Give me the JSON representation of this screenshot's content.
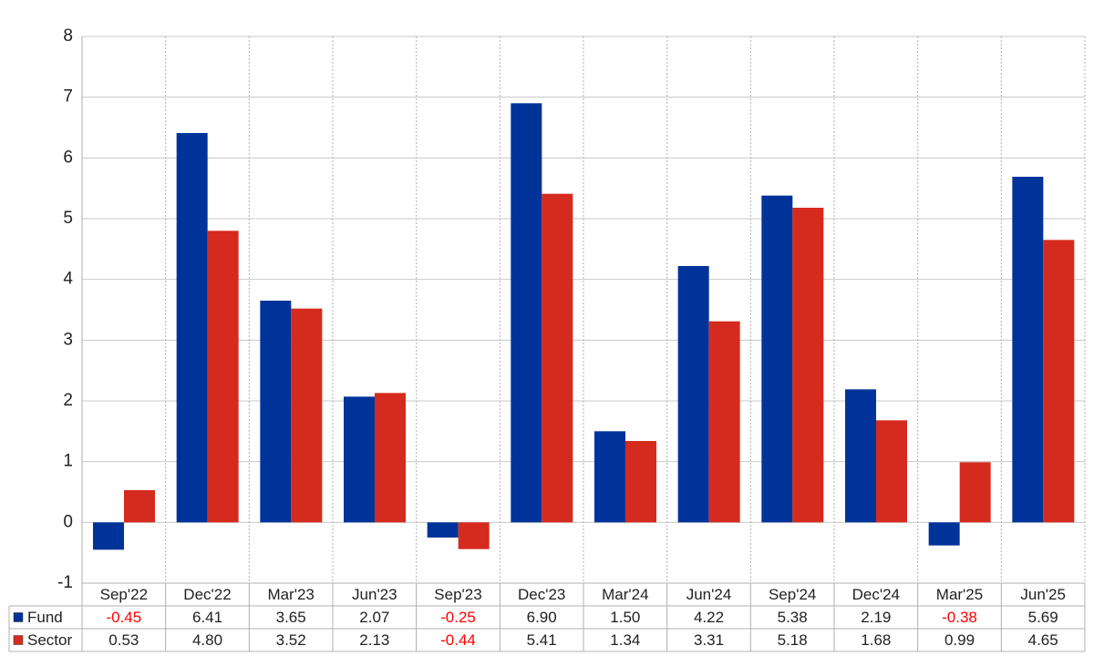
{
  "chart_data": {
    "type": "bar",
    "categories": [
      "Sep'22",
      "Dec'22",
      "Mar'23",
      "Jun'23",
      "Sep'23",
      "Dec'23",
      "Mar'24",
      "Jun'24",
      "Sep'24",
      "Dec'24",
      "Mar'25",
      "Jun'25"
    ],
    "series": [
      {
        "name": "Fund",
        "color": "#003399",
        "values": [
          -0.45,
          6.41,
          3.65,
          2.07,
          -0.25,
          6.9,
          1.5,
          4.22,
          5.38,
          2.19,
          -0.38,
          5.69
        ],
        "value_labels": [
          "-0.45",
          "6.41",
          "3.65",
          "2.07",
          "-0.25",
          "6.90",
          "1.50",
          "4.22",
          "5.38",
          "2.19",
          "-0.38",
          "5.69"
        ]
      },
      {
        "name": "Sector",
        "color": "#d52b1e",
        "values": [
          0.53,
          4.8,
          3.52,
          2.13,
          -0.44,
          5.41,
          1.34,
          3.31,
          5.18,
          1.68,
          0.99,
          4.65
        ],
        "value_labels": [
          "0.53",
          "4.80",
          "3.52",
          "2.13",
          "-0.44",
          "5.41",
          "1.34",
          "3.31",
          "5.18",
          "1.68",
          "0.99",
          "4.65"
        ]
      }
    ],
    "ylim": [
      -1,
      8
    ],
    "yticks": [
      -1,
      0,
      1,
      2,
      3,
      4,
      5,
      6,
      7,
      8
    ],
    "grid": true,
    "negative_color": "#ff0000"
  }
}
